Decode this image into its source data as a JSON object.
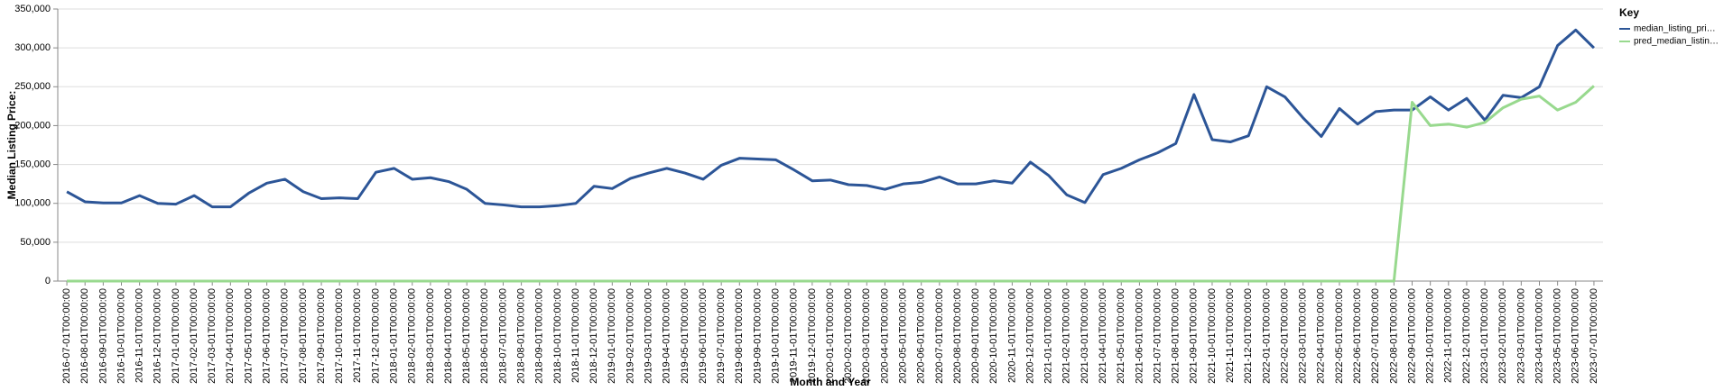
{
  "chart_data": {
    "type": "line",
    "y_label": "Median Listing Price:",
    "x_label": "Month and Year",
    "legend_title": "Key",
    "legend_position": "right",
    "grid": true,
    "categories": [
      "2016-07-01T00:00:00",
      "2016-08-01T00:00:00",
      "2016-09-01T00:00:00",
      "2016-10-01T00:00:00",
      "2016-11-01T00:00:00",
      "2016-12-01T00:00:00",
      "2017-01-01T00:00:00",
      "2017-02-01T00:00:00",
      "2017-03-01T00:00:00",
      "2017-04-01T00:00:00",
      "2017-05-01T00:00:00",
      "2017-06-01T00:00:00",
      "2017-07-01T00:00:00",
      "2017-08-01T00:00:00",
      "2017-09-01T00:00:00",
      "2017-10-01T00:00:00",
      "2017-11-01T00:00:00",
      "2017-12-01T00:00:00",
      "2018-01-01T00:00:00",
      "2018-02-01T00:00:00",
      "2018-03-01T00:00:00",
      "2018-04-01T00:00:00",
      "2018-05-01T00:00:00",
      "2018-06-01T00:00:00",
      "2018-07-01T00:00:00",
      "2018-08-01T00:00:00",
      "2018-09-01T00:00:00",
      "2018-10-01T00:00:00",
      "2018-11-01T00:00:00",
      "2018-12-01T00:00:00",
      "2019-01-01T00:00:00",
      "2019-02-01T00:00:00",
      "2019-03-01T00:00:00",
      "2019-04-01T00:00:00",
      "2019-05-01T00:00:00",
      "2019-06-01T00:00:00",
      "2019-07-01T00:00:00",
      "2019-08-01T00:00:00",
      "2019-09-01T00:00:00",
      "2019-10-01T00:00:00",
      "2019-11-01T00:00:00",
      "2019-12-01T00:00:00",
      "2020-01-01T00:00:00",
      "2020-02-01T00:00:00",
      "2020-03-01T00:00:00",
      "2020-04-01T00:00:00",
      "2020-05-01T00:00:00",
      "2020-06-01T00:00:00",
      "2020-07-01T00:00:00",
      "2020-08-01T00:00:00",
      "2020-09-01T00:00:00",
      "2020-10-01T00:00:00",
      "2020-11-01T00:00:00",
      "2020-12-01T00:00:00",
      "2021-01-01T00:00:00",
      "2021-02-01T00:00:00",
      "2021-03-01T00:00:00",
      "2021-04-01T00:00:00",
      "2021-05-01T00:00:00",
      "2021-06-01T00:00:00",
      "2021-07-01T00:00:00",
      "2021-08-01T00:00:00",
      "2021-09-01T00:00:00",
      "2021-10-01T00:00:00",
      "2021-11-01T00:00:00",
      "2021-12-01T00:00:00",
      "2022-01-01T00:00:00",
      "2022-02-01T00:00:00",
      "2022-03-01T00:00:00",
      "2022-04-01T00:00:00",
      "2022-05-01T00:00:00",
      "2022-06-01T00:00:00",
      "2022-07-01T00:00:00",
      "2022-08-01T00:00:00",
      "2022-09-01T00:00:00",
      "2022-10-01T00:00:00",
      "2022-11-01T00:00:00",
      "2022-12-01T00:00:00",
      "2023-01-01T00:00:00",
      "2023-02-01T00:00:00",
      "2023-03-01T00:00:00",
      "2023-04-01T00:00:00",
      "2023-05-01T00:00:00",
      "2023-06-01T00:00:00",
      "2023-07-01T00:00:00"
    ],
    "series": [
      {
        "name": "median_listing_pri…",
        "color": "#2c5597",
        "values": [
          115000,
          102000,
          100500,
          100500,
          110000,
          100000,
          99000,
          110000,
          95500,
          95500,
          113000,
          126000,
          131000,
          115000,
          106000,
          107000,
          106000,
          140000,
          145000,
          131000,
          133000,
          128000,
          118000,
          100000,
          98000,
          95500,
          95500,
          97000,
          100000,
          122000,
          119000,
          132000,
          139000,
          145000,
          139000,
          131000,
          149000,
          158000,
          157000,
          156000,
          143000,
          129000,
          130000,
          124000,
          123000,
          118000,
          125000,
          127000,
          134000,
          125000,
          125000,
          129000,
          126000,
          153000,
          136000,
          111000,
          101000,
          137000,
          145000,
          156000,
          165000,
          177000,
          240000,
          182000,
          179000,
          187000,
          250000,
          237000,
          210000,
          186000,
          222000,
          202000,
          218000,
          220000,
          220000,
          237000,
          220000,
          235000,
          207000,
          239000,
          236000,
          250000,
          303000,
          323000,
          300000
        ]
      },
      {
        "name": "pred_median_listin…",
        "color": "#98d98e",
        "values": [
          0,
          0,
          0,
          0,
          0,
          0,
          0,
          0,
          0,
          0,
          0,
          0,
          0,
          0,
          0,
          0,
          0,
          0,
          0,
          0,
          0,
          0,
          0,
          0,
          0,
          0,
          0,
          0,
          0,
          0,
          0,
          0,
          0,
          0,
          0,
          0,
          0,
          0,
          0,
          0,
          0,
          0,
          0,
          0,
          0,
          0,
          0,
          0,
          0,
          0,
          0,
          0,
          0,
          0,
          0,
          0,
          0,
          0,
          0,
          0,
          0,
          0,
          0,
          0,
          0,
          0,
          0,
          0,
          0,
          0,
          0,
          0,
          0,
          0,
          230000,
          200000,
          202000,
          198000,
          204000,
          223000,
          234000,
          238000,
          220000,
          230000,
          251000
        ]
      }
    ],
    "ylim": [
      0,
      350000
    ],
    "yticks": [
      0,
      {
        "value": 50000,
        "label": "50,000"
      },
      {
        "value": 100000,
        "label": "100,000"
      },
      {
        "value": 150000,
        "label": "150,000"
      },
      {
        "value": 200000,
        "label": "200,000"
      },
      {
        "value": 250000,
        "label": "250,000"
      },
      {
        "value": 300000,
        "label": "300,000"
      },
      {
        "value": 350000,
        "label": "350,000"
      }
    ]
  }
}
